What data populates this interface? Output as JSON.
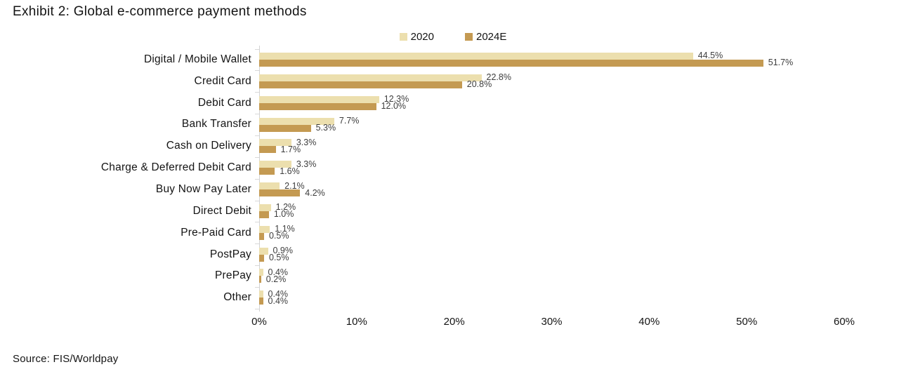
{
  "title": "Exhibit 2: Global e-commerce payment methods",
  "source": "Source: FIS/Worldpay",
  "colors": {
    "series_2020": "#ecdfae",
    "series_2024e": "#c49a52",
    "axis_line": "#d2d2d2",
    "text": "#141414",
    "value_label": "#3d3d3d"
  },
  "legend": {
    "items": [
      {
        "label": "2020",
        "color": "#ecdfae"
      },
      {
        "label": "2024E",
        "color": "#c49a52"
      }
    ]
  },
  "chart_data": {
    "type": "bar",
    "orientation": "horizontal",
    "title": "Exhibit 2: Global e-commerce payment methods",
    "xlabel": "",
    "ylabel": "",
    "xlim": [
      0,
      60
    ],
    "x_ticks": [
      "0%",
      "10%",
      "20%",
      "30%",
      "40%",
      "50%",
      "60%"
    ],
    "grid": false,
    "legend_position": "top-center",
    "data_labels": "one-decimal-percent",
    "categories": [
      "Digital / Mobile Wallet",
      "Credit Card",
      "Debit Card",
      "Bank Transfer",
      "Cash on Delivery",
      "Charge & Deferred Debit Card",
      "Buy Now Pay Later",
      "Direct Debit",
      "Pre-Paid Card",
      "PostPay",
      "PrePay",
      "Other"
    ],
    "series": [
      {
        "name": "2020",
        "color": "#ecdfae",
        "values": [
          44.5,
          22.8,
          12.3,
          7.7,
          3.3,
          3.3,
          2.1,
          1.2,
          1.1,
          0.9,
          0.4,
          0.4
        ]
      },
      {
        "name": "2024E",
        "color": "#c49a52",
        "values": [
          51.7,
          20.8,
          12.0,
          5.3,
          1.7,
          1.6,
          4.2,
          1.0,
          0.5,
          0.5,
          0.2,
          0.4
        ]
      }
    ]
  }
}
